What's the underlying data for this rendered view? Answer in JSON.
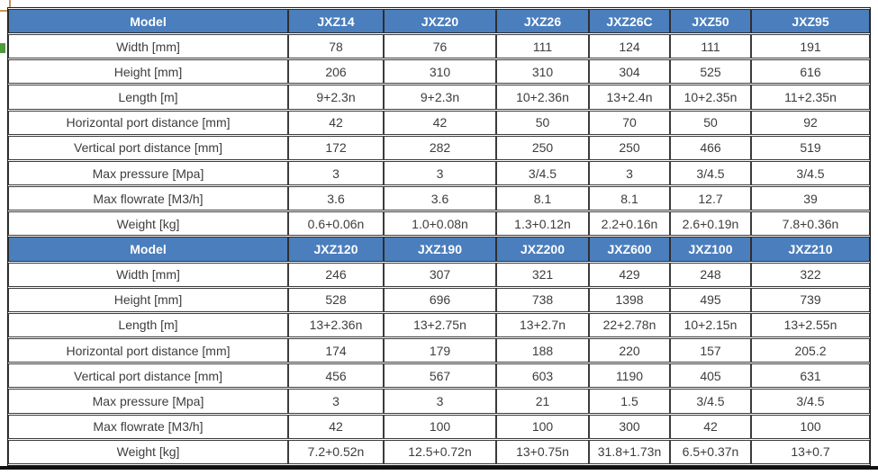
{
  "page": {
    "background": "#ffffff",
    "accent_blue": "#4a7ebd",
    "grid_border_color": "#3c3c3c",
    "body_text_color": "#3d3d3d",
    "header_text_color": "#ffffff"
  },
  "table": {
    "sections": [
      {
        "header": {
          "label": "Model",
          "models": [
            "JXZ14",
            "JXZ20",
            "JXZ26",
            "JXZ26C",
            "JXZ50",
            "JXZ95"
          ]
        },
        "rows": [
          {
            "label": "Width [mm]",
            "values": [
              "78",
              "76",
              "111",
              "124",
              "111",
              "191"
            ]
          },
          {
            "label": "Height [mm]",
            "values": [
              "206",
              "310",
              "310",
              "304",
              "525",
              "616"
            ]
          },
          {
            "label": "Length [m]",
            "values": [
              "9+2.3n",
              "9+2.3n",
              "10+2.36n",
              "13+2.4n",
              "10+2.35n",
              "11+2.35n"
            ]
          },
          {
            "label": "Horizontal port distance [mm]",
            "values": [
              "42",
              "42",
              "50",
              "70",
              "50",
              "92"
            ]
          },
          {
            "label": "Vertical port distance  [mm]",
            "values": [
              "172",
              "282",
              "250",
              "250",
              "466",
              "519"
            ]
          },
          {
            "label": "Max pressure [Mpa]",
            "values": [
              "3",
              "3",
              "3/4.5",
              "3",
              "3/4.5",
              "3/4.5"
            ]
          },
          {
            "label": "Max flowrate  [M3/h]",
            "values": [
              "3.6",
              "3.6",
              "8.1",
              "8.1",
              "12.7",
              "39"
            ]
          },
          {
            "label": "Weight [kg]",
            "values": [
              "0.6+0.06n",
              "1.0+0.08n",
              "1.3+0.12n",
              "2.2+0.16n",
              "2.6+0.19n",
              "7.8+0.36n"
            ]
          }
        ]
      },
      {
        "header": {
          "label": "Model",
          "models": [
            "JXZ120",
            "JXZ190",
            "JXZ200",
            "JXZ600",
            "JXZ100",
            "JXZ210"
          ]
        },
        "rows": [
          {
            "label": "Width [mm]",
            "values": [
              "246",
              "307",
              "321",
              "429",
              "248",
              "322"
            ]
          },
          {
            "label": "Height [mm]",
            "values": [
              "528",
              "696",
              "738",
              "1398",
              "495",
              "739"
            ]
          },
          {
            "label": "Length [m]",
            "values": [
              "13+2.36n",
              "13+2.75n",
              "13+2.7n",
              "22+2.78n",
              "10+2.15n",
              "13+2.55n"
            ]
          },
          {
            "label": "Horizontal port distance [mm]",
            "values": [
              "174",
              "179",
              "188",
              "220",
              "157",
              "205.2"
            ]
          },
          {
            "label": "Vertical port distance  [mm]",
            "values": [
              "456",
              "567",
              "603",
              "1190",
              "405",
              "631"
            ]
          },
          {
            "label": "Max pressure [Mpa]",
            "values": [
              "3",
              "3",
              "21",
              "1.5",
              "3/4.5",
              "3/4.5"
            ]
          },
          {
            "label": "Max flowrate  [M3/h]",
            "values": [
              "42",
              "100",
              "100",
              "300",
              "42",
              "100"
            ]
          },
          {
            "label": "Weight [kg]",
            "values": [
              "7.2+0.52n",
              "12.5+0.72n",
              "13+0.75n",
              "31.8+1.73n",
              "6.5+0.37n",
              "13+0.7"
            ]
          }
        ]
      }
    ]
  }
}
